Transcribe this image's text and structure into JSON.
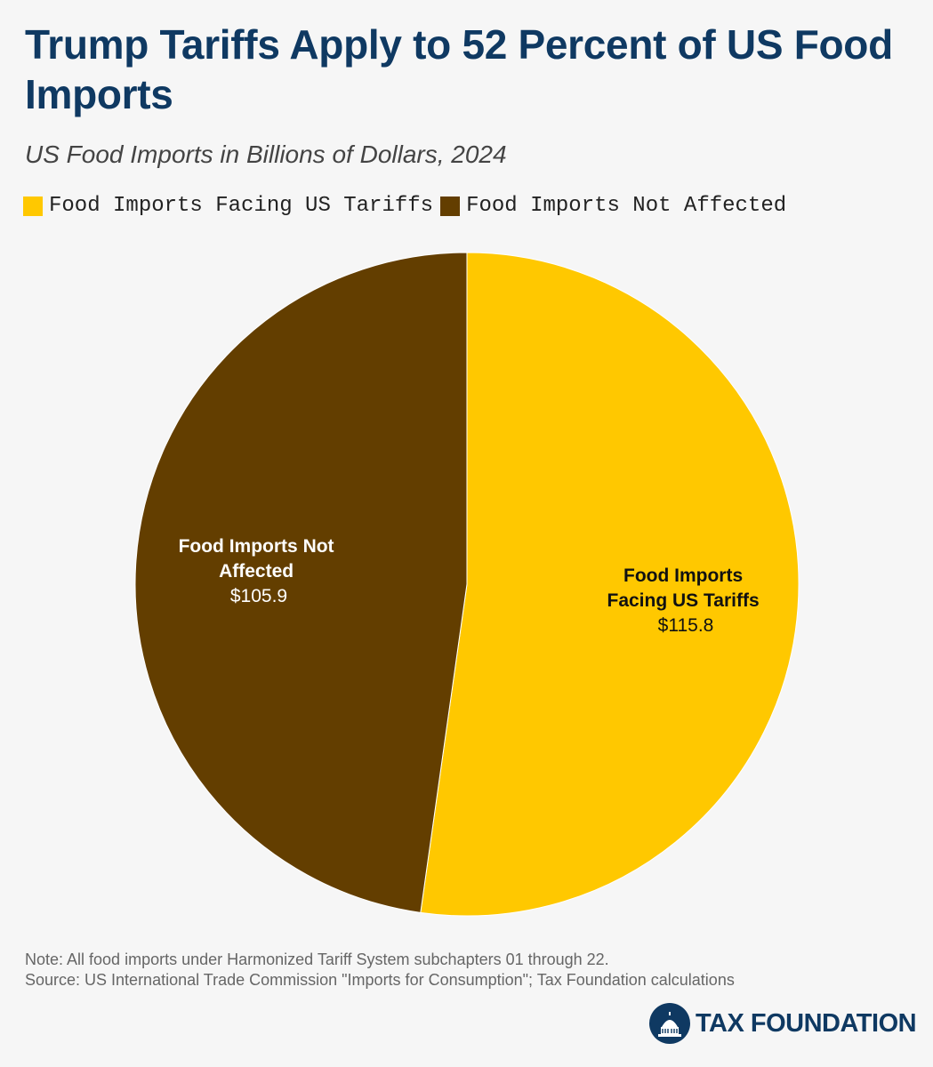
{
  "header": {
    "title": "Trump Tariffs Apply to 52 Percent of US Food Imports",
    "subtitle": "US Food Imports in Billions of Dollars, 2024"
  },
  "legend": [
    {
      "label": "Food Imports Facing US Tariffs",
      "color": "#ffc800"
    },
    {
      "label": "Food Imports Not Affected",
      "color": "#633e00"
    }
  ],
  "chart_data": {
    "type": "pie",
    "title": "Trump Tariffs Apply to 52 Percent of US Food Imports",
    "subtitle": "US Food Imports in Billions of Dollars, 2024",
    "slices": [
      {
        "name": "Food Imports Facing US Tariffs",
        "name_line1": "Food Imports",
        "name_line2": "Facing US Tariffs",
        "value": 115.8,
        "value_label": "$115.8",
        "color": "#ffc800",
        "text_color": "#111111"
      },
      {
        "name": "Food Imports Not Affected",
        "name_line1": "Food Imports Not",
        "name_line2": "Affected",
        "value": 105.9,
        "value_label": "$105.9",
        "color": "#633e00",
        "text_color": "#ffffff"
      }
    ],
    "start": "12 o'clock",
    "direction": "clockwise",
    "legend_position": "top-left"
  },
  "footer": {
    "note": "Note: All food imports under Harmonized Tariff System subchapters 01 through 22.",
    "source": "Source: US International Trade Commission \"Imports for Consumption\"; Tax Foundation calculations",
    "brand": "TAX FOUNDATION"
  }
}
